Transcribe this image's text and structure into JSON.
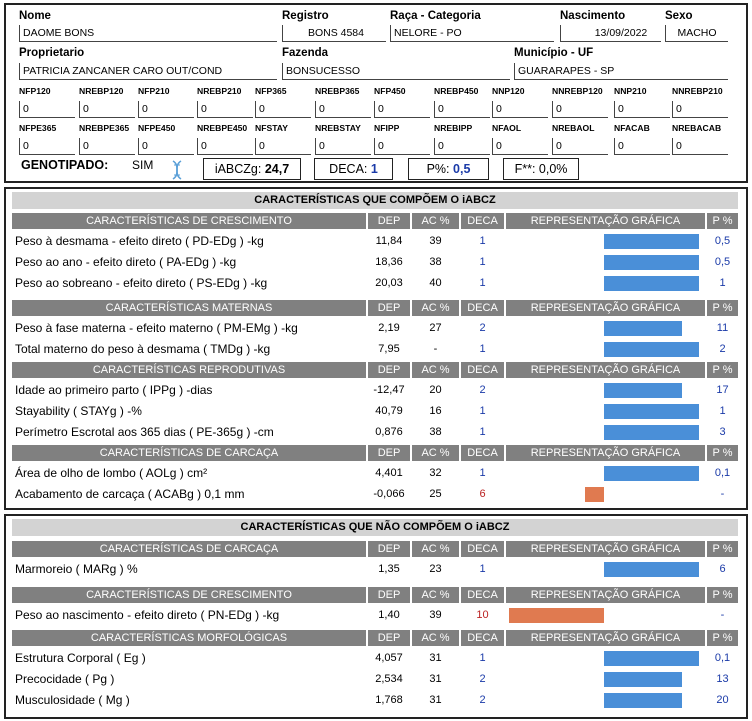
{
  "header": {
    "nome_label": "Nome",
    "nome": "DAOME BONS",
    "registro_label": "Registro",
    "registro": "BONS 4584",
    "raca_label": "Raça - Categoria",
    "raca": "NELORE - PO",
    "nasc_label": "Nascimento",
    "nasc": "13/09/2022",
    "sexo_label": "Sexo",
    "sexo": "MACHO",
    "prop_label": "Proprietario",
    "prop": "PATRICIA ZANCANER CARO OUT/COND",
    "fazenda_label": "Fazenda",
    "fazenda": "BONSUCESSO",
    "municipio_label": "Município - UF",
    "municipio": "GUARARAPES - SP"
  },
  "small_fields_row1": [
    {
      "label": "NFP120",
      "value": "0"
    },
    {
      "label": "NREBP120",
      "value": "0"
    },
    {
      "label": "NFP210",
      "value": "0"
    },
    {
      "label": "NREBP210",
      "value": "0"
    },
    {
      "label": "NFP365",
      "value": "0"
    },
    {
      "label": "NREBP365",
      "value": "0"
    },
    {
      "label": "NFP450",
      "value": "0"
    },
    {
      "label": "NREBP450",
      "value": "0"
    },
    {
      "label": "NNP120",
      "value": "0"
    },
    {
      "label": "NNREBP120",
      "value": "0"
    },
    {
      "label": "NNP210",
      "value": "0"
    },
    {
      "label": "NNREBP210",
      "value": "0"
    }
  ],
  "small_fields_row2": [
    {
      "label": "NFPE365",
      "value": "0"
    },
    {
      "label": "NREBPE365",
      "value": "0"
    },
    {
      "label": "NFPE450",
      "value": "0"
    },
    {
      "label": "NREBPE450",
      "value": "0"
    },
    {
      "label": "NFSTAY",
      "value": "0"
    },
    {
      "label": "NREBSTAY",
      "value": "0"
    },
    {
      "label": "NFIPP",
      "value": "0"
    },
    {
      "label": "NREBIPP",
      "value": "0"
    },
    {
      "label": "NFAOL",
      "value": "0"
    },
    {
      "label": "NREBAOL",
      "value": "0"
    },
    {
      "label": "NFACAB",
      "value": "0"
    },
    {
      "label": "NREBACAB",
      "value": "0"
    }
  ],
  "genotipado": {
    "label": "GENOTIPADO:",
    "value": "SIM",
    "iabczg_label": "iABCZg:",
    "iabczg": "24,7",
    "deca_label": "DECA:",
    "deca": "1",
    "p_label": "P%:",
    "p": "0,5",
    "f_label": "F**:",
    "f": "0,0%"
  },
  "colors": {
    "bar_good": "#4a8fd8",
    "bar_bad": "#e07a50",
    "header_gray": "#808080"
  },
  "columns": {
    "dep": "DEP",
    "ac": "AC %",
    "deca": "DECA",
    "grafica": "REPRESENTAÇÃO GRÁFICA",
    "p": "P %"
  },
  "section1": {
    "title": "CARACTERÍSTICAS QUE COMPÕEM O iABCZ",
    "groups": [
      {
        "name": "CARACTERÍSTICAS DE CRESCIMENTO",
        "rows": [
          {
            "label": "Peso à desmama - efeito direto ( PD-EDg ) -kg",
            "dep": "11,84",
            "ac": "39",
            "deca": "1",
            "p": "0,5",
            "bar": 1.0,
            "good": true
          },
          {
            "label": "Peso ao ano - efeito direto ( PA-EDg ) -kg",
            "dep": "18,36",
            "ac": "38",
            "deca": "1",
            "p": "0,5",
            "bar": 1.0,
            "good": true
          },
          {
            "label": "Peso ao sobreano - efeito direto ( PS-EDg ) -kg",
            "dep": "20,03",
            "ac": "40",
            "deca": "1",
            "p": "1",
            "bar": 1.0,
            "good": true
          }
        ]
      },
      {
        "name": "CARACTERÍSTICAS MATERNAS",
        "rows": [
          {
            "label": "Peso à fase materna - efeito materno ( PM-EMg ) -kg",
            "dep": "2,19",
            "ac": "27",
            "deca": "2",
            "p": "11",
            "bar": 0.82,
            "good": true
          },
          {
            "label": "Total materno do peso à desmama ( TMDg ) -kg",
            "dep": "7,95",
            "ac": "-",
            "deca": "1",
            "p": "2",
            "bar": 1.0,
            "good": true
          }
        ]
      },
      {
        "name": "CARACTERÍSTICAS REPRODUTIVAS",
        "rows": [
          {
            "label": "Idade ao primeiro parto ( IPPg ) -dias",
            "dep": "-12,47",
            "ac": "20",
            "deca": "2",
            "p": "17",
            "bar": 0.82,
            "good": true
          },
          {
            "label": "Stayability ( STAYg ) -%",
            "dep": "40,79",
            "ac": "16",
            "deca": "1",
            "p": "1",
            "bar": 1.0,
            "good": true
          },
          {
            "label": "Perímetro Escrotal aos 365 dias ( PE-365g ) -cm",
            "dep": "0,876",
            "ac": "38",
            "deca": "1",
            "p": "3",
            "bar": 1.0,
            "good": true
          }
        ]
      },
      {
        "name": "CARACTERÍSTICAS DE CARCAÇA",
        "rows": [
          {
            "label": "Área de olho de lombo ( AOLg ) cm²",
            "dep": "4,401",
            "ac": "32",
            "deca": "1",
            "p": "0,1",
            "bar": 1.0,
            "good": true
          },
          {
            "label": "Acabamento de carcaça ( ACABg ) 0,1 mm",
            "dep": "-0,066",
            "ac": "25",
            "deca": "6",
            "p": "-",
            "bar": 0.2,
            "good": false
          }
        ]
      }
    ]
  },
  "section2": {
    "title": "CARACTERÍSTICAS QUE NÃO COMPÕEM O iABCZ",
    "groups": [
      {
        "name": "CARACTERÍSTICAS DE CARCAÇA",
        "rows": [
          {
            "label": "Marmoreio ( MARg ) %",
            "dep": "1,35",
            "ac": "23",
            "deca": "1",
            "p": "6",
            "bar": 1.0,
            "good": true
          }
        ]
      },
      {
        "name": "CARACTERÍSTICAS DE CRESCIMENTO",
        "rows": [
          {
            "label": "Peso ao nascimento - efeito direto ( PN-EDg ) -kg",
            "dep": "1,40",
            "ac": "39",
            "deca": "10",
            "p": "-",
            "bar": 1.0,
            "good": false
          }
        ]
      },
      {
        "name": "CARACTERÍSTICAS MORFOLÓGICAS",
        "rows": [
          {
            "label": "Estrutura Corporal ( Eg )",
            "dep": "4,057",
            "ac": "31",
            "deca": "1",
            "p": "0,1",
            "bar": 1.0,
            "good": true
          },
          {
            "label": "Precocidade ( Pg )",
            "dep": "2,534",
            "ac": "31",
            "deca": "2",
            "p": "13",
            "bar": 0.82,
            "good": true
          },
          {
            "label": "Musculosidade ( Mg )",
            "dep": "1,768",
            "ac": "31",
            "deca": "2",
            "p": "20",
            "bar": 0.82,
            "good": true
          }
        ]
      }
    ]
  }
}
